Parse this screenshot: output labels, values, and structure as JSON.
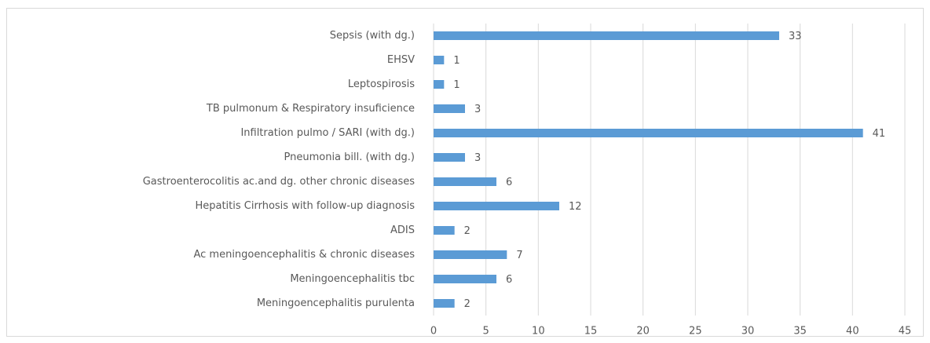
{
  "chart_data": {
    "type": "bar",
    "orientation": "horizontal",
    "categories": [
      "Sepsis (with dg.)",
      "EHSV",
      "Leptospirosis",
      "TB pulmonum & Respiratory insuficience",
      "Infiltration pulmo / SARI (with dg.)",
      "Pneumonia bill. (with dg.)",
      "Gastroenterocolitis ac.and dg. other chronic diseases",
      "Hepatitis Cirrhosis with follow-up diagnosis",
      "ADIS",
      "Ac meningoencephalitis & chronic diseases",
      "Meningoencephalitis tbc",
      "Meningoencephalitis purulenta"
    ],
    "values": [
      33,
      1,
      1,
      3,
      41,
      3,
      6,
      12,
      2,
      7,
      6,
      2
    ],
    "color": "#5b9bd5",
    "xlim": [
      0,
      45
    ],
    "xticks": [
      0,
      5,
      10,
      15,
      20,
      25,
      30,
      35,
      40,
      45
    ],
    "grid": true
  }
}
